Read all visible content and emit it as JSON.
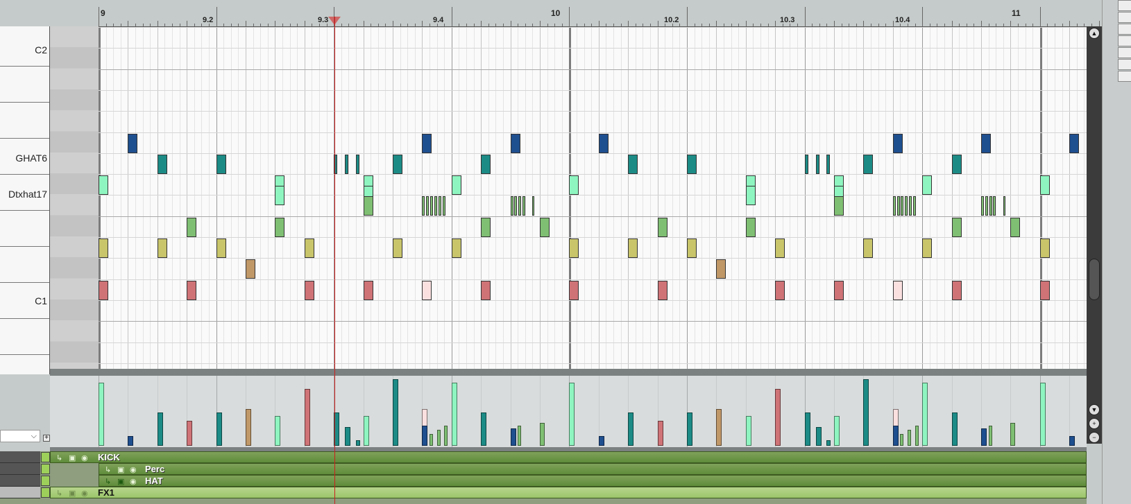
{
  "ruler": {
    "bar_labels": [
      "9",
      "10",
      "11"
    ],
    "beat_labels": [
      "9.2",
      "9.3",
      "9.4",
      "10.2",
      "10.3",
      "10.4"
    ]
  },
  "piano": {
    "labels": [
      "C2",
      "GHAT6",
      "Dtxhat17",
      "C1"
    ]
  },
  "colors": {
    "ghat": "#1e4f8f",
    "teal": "#1c8b86",
    "mint": "#8ff5c0",
    "green": "#7fbf73",
    "olive": "#c8c56b",
    "brown": "#c09868",
    "red": "#cf7377",
    "pink": "#fbe0e0",
    "playhead": "#cc1e1e"
  },
  "cc_lane": {
    "selected": ""
  },
  "tracks": [
    {
      "name": "KICK"
    },
    {
      "name": "Perc"
    },
    {
      "name": "HAT"
    },
    {
      "name": "FX1"
    }
  ],
  "icons": [
    "arrow-up-icon",
    "arrow-down-icon",
    "zoom-in-icon",
    "zoom-out-icon",
    "eye-icon",
    "lock-icon",
    "envelope-icon"
  ]
}
